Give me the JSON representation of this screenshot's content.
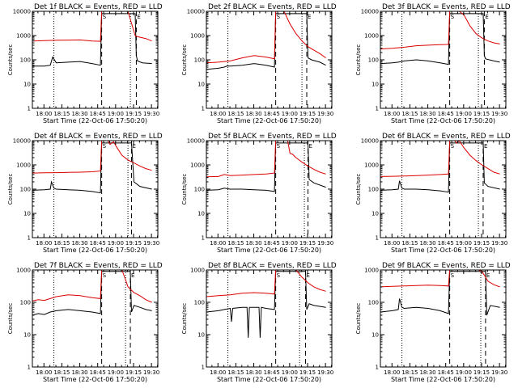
{
  "colors": {
    "events": "#000000",
    "lld": "#dd0000",
    "axes": "#000000",
    "background": "#ffffff"
  },
  "chart_data": {
    "type": "line",
    "grid": false,
    "y_scale": "log",
    "x_tick_labels": [
      "18:00",
      "18:15",
      "18:30",
      "18:45",
      "19:00",
      "19:15",
      "19:30"
    ],
    "x_ticks_minutes_after_start": [
      9.67,
      24.67,
      39.67,
      54.67,
      69.67,
      84.67,
      99.67
    ],
    "xlim_minutes_after_start": [
      0,
      105
    ],
    "xlabel": "Start Time (22-Oct-06 17:50:20)",
    "ylabel": "Counts/sec",
    "series_names": [
      "Events",
      "LLD"
    ],
    "panels": [
      {
        "title": "Det 1f BLACK = Events, RED = LLD",
        "ylim": [
          1,
          10000
        ],
        "y_tick_labels": [
          "1",
          "10",
          "100",
          "1000",
          "10000"
        ],
        "markers": [
          {
            "label": "S",
            "x": 58
          },
          {
            "label": "E",
            "x": 87
          }
        ],
        "dotted_lines": [
          18,
          82
        ],
        "dashed_lines": [
          58,
          87
        ],
        "series": [
          {
            "name": "Events",
            "x": [
              0,
              10,
              15,
              17,
              20,
              30,
              40,
              50,
              57,
              58,
              65,
              80,
              86,
              87,
              88,
              92,
              100
            ],
            "y": [
              55,
              55,
              60,
              130,
              75,
              80,
              85,
              70,
              60,
              8000,
              8000,
              8000,
              8000,
              150,
              90,
              75,
              70
            ]
          },
          {
            "name": "LLD",
            "x": [
              0,
              10,
              20,
              30,
              40,
              50,
              57,
              58,
              70,
              80,
              86,
              88,
              95,
              100
            ],
            "y": [
              600,
              620,
              640,
              650,
              660,
              600,
              580,
              10000,
              10000,
              10000,
              1000,
              900,
              750,
              600
            ]
          }
        ]
      },
      {
        "title": "Det 2f BLACK = Events, RED = LLD",
        "ylim": [
          1,
          10000
        ],
        "y_tick_labels": [
          "1",
          "10",
          "100",
          "1000",
          "10000"
        ],
        "markers": [
          {
            "label": "S",
            "x": 58
          },
          {
            "label": "E",
            "x": 84
          }
        ],
        "dotted_lines": [
          18,
          80
        ],
        "dashed_lines": [
          58,
          84
        ],
        "series": [
          {
            "name": "Events",
            "x": [
              0,
              10,
              15,
              17,
              20,
              30,
              40,
              50,
              57,
              58,
              70,
              80,
              84,
              85,
              88,
              95,
              100
            ],
            "y": [
              40,
              45,
              50,
              55,
              55,
              60,
              70,
              60,
              50,
              8000,
              8000,
              8000,
              8000,
              120,
              100,
              80,
              60
            ]
          },
          {
            "name": "LLD",
            "x": [
              0,
              10,
              20,
              30,
              40,
              50,
              57,
              58,
              60,
              65,
              70,
              75,
              80,
              85,
              90,
              95,
              100
            ],
            "y": [
              75,
              80,
              90,
              120,
              150,
              130,
              110,
              10000,
              10000,
              10000,
              3000,
              1200,
              600,
              350,
              250,
              180,
              120
            ]
          }
        ]
      },
      {
        "title": "Det 3f BLACK = Events, RED = LLD",
        "ylim": [
          1,
          10000
        ],
        "y_tick_labels": [
          "1",
          "10",
          "100",
          "1000",
          "10000"
        ],
        "markers": [
          {
            "label": "S",
            "x": 58
          },
          {
            "label": "E",
            "x": 87
          }
        ],
        "dotted_lines": [
          18,
          82
        ],
        "dashed_lines": [
          58,
          87
        ],
        "series": [
          {
            "name": "Events",
            "x": [
              0,
              10,
              15,
              20,
              30,
              40,
              50,
              57,
              58,
              70,
              80,
              86,
              87,
              88,
              95,
              100
            ],
            "y": [
              70,
              75,
              80,
              90,
              100,
              90,
              75,
              65,
              8000,
              8000,
              8000,
              8000,
              150,
              110,
              90,
              80
            ]
          },
          {
            "name": "LLD",
            "x": [
              0,
              10,
              20,
              30,
              40,
              50,
              57,
              58,
              66,
              70,
              75,
              80,
              85,
              90,
              95,
              100
            ],
            "y": [
              280,
              300,
              330,
              380,
              400,
              420,
              430,
              10000,
              10000,
              7000,
              2500,
              1200,
              800,
              600,
              500,
              450
            ]
          }
        ]
      },
      {
        "title": "Det 4f BLACK = Events, RED = LLD",
        "ylim": [
          1,
          10000
        ],
        "y_tick_labels": [
          "1",
          "10",
          "100",
          "1000",
          "10000"
        ],
        "markers": [
          {
            "label": "S",
            "x": 58
          },
          {
            "label": "E",
            "x": 83
          }
        ],
        "dotted_lines": [
          18,
          80
        ],
        "dashed_lines": [
          58,
          83
        ],
        "series": [
          {
            "name": "Events",
            "x": [
              0,
              10,
              15,
              16,
              18,
              20,
              30,
              40,
              50,
              57,
              58,
              70,
              82,
              83,
              85,
              90,
              100
            ],
            "y": [
              90,
              95,
              100,
              200,
              110,
              100,
              95,
              90,
              80,
              70,
              8000,
              8000,
              8000,
              8000,
              200,
              130,
              100
            ]
          },
          {
            "name": "LLD",
            "x": [
              0,
              10,
              20,
              30,
              40,
              50,
              57,
              58,
              63,
              65,
              68,
              70,
              75,
              80,
              85,
              90,
              95,
              100
            ],
            "y": [
              460,
              470,
              480,
              490,
              500,
              520,
              560,
              10000,
              10000,
              7000,
              9000,
              6000,
              2500,
              1600,
              1200,
              900,
              700,
              600
            ]
          }
        ]
      },
      {
        "title": "Det 5f BLACK = Events, RED = LLD",
        "ylim": [
          1,
          10000
        ],
        "y_tick_labels": [
          "1",
          "10",
          "100",
          "1000",
          "10000"
        ],
        "markers": [
          {
            "label": "S",
            "x": 58
          },
          {
            "label": "E",
            "x": 85
          }
        ],
        "dotted_lines": [
          18,
          82
        ],
        "dashed_lines": [
          58,
          85
        ],
        "series": [
          {
            "name": "Events",
            "x": [
              0,
              10,
              15,
              20,
              30,
              40,
              50,
              57,
              58,
              70,
              84,
              85,
              86,
              90,
              100
            ],
            "y": [
              90,
              95,
              110,
              100,
              100,
              95,
              90,
              80,
              8000,
              8000,
              8000,
              8000,
              250,
              180,
              120
            ]
          },
          {
            "name": "LLD",
            "x": [
              0,
              10,
              15,
              20,
              30,
              40,
              50,
              57,
              58,
              68,
              70,
              72,
              75,
              80,
              85,
              90,
              95,
              100
            ],
            "y": [
              320,
              330,
              400,
              360,
              380,
              400,
              420,
              460,
              10000,
              10000,
              3000,
              2800,
              2000,
              1300,
              900,
              650,
              500,
              420
            ]
          }
        ]
      },
      {
        "title": "Det 6f BLACK = Events, RED = LLD",
        "ylim": [
          1,
          10000
        ],
        "y_tick_labels": [
          "1",
          "10",
          "100",
          "1000",
          "10000"
        ],
        "markers": [
          {
            "label": "S",
            "x": 58
          },
          {
            "label": "E",
            "x": 86
          }
        ],
        "dotted_lines": [
          18,
          82
        ],
        "dashed_lines": [
          58,
          86
        ],
        "series": [
          {
            "name": "Events",
            "x": [
              0,
              10,
              15,
              16,
              18,
              20,
              30,
              40,
              50,
              57,
              58,
              70,
              85,
              86,
              87,
              90,
              100
            ],
            "y": [
              90,
              95,
              100,
              220,
              110,
              100,
              100,
              95,
              85,
              75,
              8000,
              8000,
              8000,
              8000,
              180,
              130,
              100
            ]
          },
          {
            "name": "LLD",
            "x": [
              0,
              10,
              20,
              30,
              40,
              50,
              57,
              58,
              62,
              64,
              66,
              68,
              70,
              75,
              80,
              85,
              90,
              95,
              100
            ],
            "y": [
              330,
              340,
              350,
              360,
              380,
              400,
              420,
              10000,
              10000,
              8000,
              10000,
              7000,
              5000,
              2500,
              1500,
              1000,
              700,
              500,
              420
            ]
          }
        ]
      },
      {
        "title": "Det 7f BLACK = Events, RED = LLD",
        "ylim": [
          1,
          1000
        ],
        "y_tick_labels": [
          "1",
          "10",
          "100",
          "1000"
        ],
        "markers": [
          {
            "label": "S",
            "x": 58
          },
          {
            "label": "E",
            "x": 82
          }
        ],
        "dotted_lines": [
          18,
          78
        ],
        "dashed_lines": [
          58,
          82
        ],
        "series": [
          {
            "name": "Events",
            "x": [
              0,
              5,
              10,
              15,
              20,
              30,
              40,
              50,
              57,
              58,
              70,
              81,
              82,
              83,
              85,
              90,
              95,
              100
            ],
            "y": [
              40,
              45,
              42,
              50,
              55,
              60,
              55,
              50,
              45,
              900,
              900,
              900,
              900,
              50,
              80,
              70,
              60,
              55
            ]
          },
          {
            "name": "LLD",
            "x": [
              0,
              5,
              10,
              15,
              20,
              30,
              40,
              50,
              57,
              58,
              70,
              75,
              78,
              80,
              85,
              90,
              95,
              100
            ],
            "y": [
              110,
              120,
              115,
              130,
              150,
              170,
              160,
              140,
              130,
              1000,
              1000,
              1000,
              500,
              300,
              200,
              160,
              120,
              100
            ]
          }
        ]
      },
      {
        "title": "Det 8f BLACK = Events, RED = LLD",
        "ylim": [
          1,
          1000
        ],
        "y_tick_labels": [
          "1",
          "10",
          "100",
          "1000"
        ],
        "markers": [
          {
            "label": "S",
            "x": 58
          },
          {
            "label": "E",
            "x": 83
          }
        ],
        "dotted_lines": [
          18,
          78
        ],
        "dashed_lines": [
          58,
          83
        ],
        "series": [
          {
            "name": "Events",
            "x": [
              0,
              10,
              15,
              20,
              21,
              22,
              30,
              34,
              35,
              36,
              40,
              44,
              45,
              46,
              50,
              57,
              58,
              70,
              82,
              83,
              84,
              86,
              90,
              100
            ],
            "y": [
              50,
              55,
              60,
              65,
              25,
              65,
              70,
              70,
              8,
              70,
              70,
              70,
              8,
              70,
              65,
              60,
              900,
              900,
              900,
              900,
              60,
              90,
              80,
              70
            ]
          },
          {
            "name": "LLD",
            "x": [
              0,
              10,
              20,
              30,
              40,
              50,
              57,
              58,
              72,
              75,
              80,
              85,
              90,
              95,
              100
            ],
            "y": [
              150,
              160,
              170,
              190,
              200,
              190,
              180,
              1000,
              1000,
              1000,
              600,
              400,
              300,
              250,
              220
            ]
          }
        ]
      },
      {
        "title": "Det 9f BLACK = Events, RED = LLD",
        "ylim": [
          1,
          1000
        ],
        "y_tick_labels": [
          "1",
          "10",
          "100",
          "1000"
        ],
        "markers": [
          {
            "label": "S",
            "x": 58
          },
          {
            "label": "E",
            "x": 88
          }
        ],
        "dotted_lines": [
          18,
          84
        ],
        "dashed_lines": [
          58,
          88
        ],
        "series": [
          {
            "name": "Events",
            "x": [
              0,
              10,
              15,
              16,
              18,
              20,
              30,
              40,
              50,
              57,
              58,
              70,
              87,
              88,
              89,
              92,
              100
            ],
            "y": [
              50,
              55,
              60,
              130,
              70,
              65,
              70,
              65,
              55,
              45,
              900,
              900,
              900,
              900,
              40,
              80,
              70
            ]
          },
          {
            "name": "LLD",
            "x": [
              0,
              10,
              20,
              30,
              40,
              50,
              57,
              58,
              70,
              82,
              85,
              88,
              90,
              95,
              100
            ],
            "y": [
              300,
              310,
              320,
              330,
              340,
              330,
              320,
              1000,
              1000,
              1000,
              900,
              600,
              450,
              350,
              300
            ]
          }
        ]
      }
    ]
  }
}
